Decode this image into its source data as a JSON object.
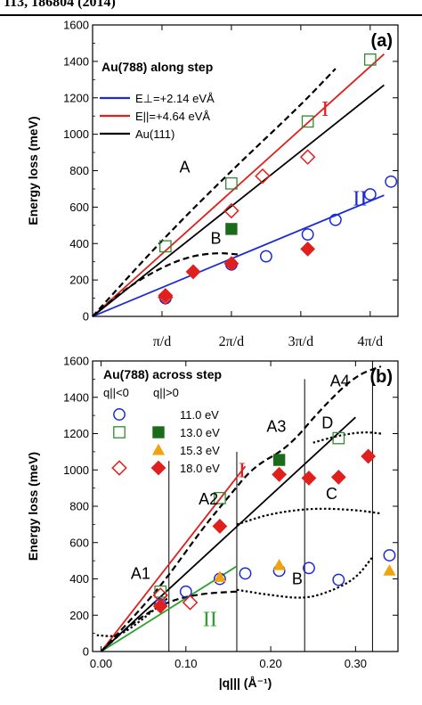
{
  "header": {
    "text": "113, 186804 (2014)"
  },
  "chart_data": [
    {
      "type": "scatter",
      "panel_label": "(a)",
      "title": "Au(788)  along step",
      "ylabel": "Energy loss (meV)",
      "ylim": [
        0,
        1600
      ],
      "yticks": [
        "0",
        "200",
        "400",
        "600",
        "800",
        "1000",
        "1200",
        "1400",
        "1600"
      ],
      "xlim": [
        0,
        4.4
      ],
      "xticks": [
        {
          "value": 1,
          "label": "π/d"
        },
        {
          "value": 2,
          "label": "2π/d"
        },
        {
          "value": 3,
          "label": "3π/d"
        },
        {
          "value": 4,
          "label": "4π/d"
        }
      ],
      "legend": {
        "placement": "top-left",
        "entries": [
          {
            "label": "E⊥=+2.14 eVÅ",
            "color": "#1a2bd6"
          },
          {
            "label": "E||=+4.64 eVÅ",
            "color": "#e0201c"
          },
          {
            "label": "Au(111)",
            "color": "#000000"
          }
        ]
      },
      "lines": [
        {
          "name": "blue-fit",
          "color": "#1a2bd6",
          "style": "solid",
          "x": [
            0,
            4.2
          ],
          "y": [
            0,
            665
          ]
        },
        {
          "name": "red-fit",
          "color": "#e0201c",
          "style": "solid",
          "x": [
            0,
            4.2
          ],
          "y": [
            0,
            1440
          ]
        },
        {
          "name": "black-au111",
          "color": "#000000",
          "style": "solid",
          "x": [
            0,
            4.2
          ],
          "y": [
            0,
            1270
          ]
        },
        {
          "name": "dashed-A",
          "color": "#000000",
          "style": "dashed",
          "x": [
            0,
            1,
            2,
            3,
            3.5
          ],
          "y": [
            0,
            420,
            800,
            1160,
            1360
          ]
        },
        {
          "name": "dashed-B",
          "color": "#000000",
          "style": "dashed",
          "x": [
            0,
            0.5,
            1,
            1.4,
            1.8,
            2.1
          ],
          "y": [
            0,
            160,
            270,
            330,
            350,
            340
          ]
        }
      ],
      "series": [
        {
          "name": "blue-circles",
          "marker": "open-circle",
          "color": "#1a2bd6",
          "x": [
            1.05,
            2.0,
            2.5,
            3.1,
            3.5,
            4.0,
            4.3
          ],
          "y": [
            100,
            285,
            330,
            450,
            530,
            670,
            740
          ]
        },
        {
          "name": "green-open-squares",
          "marker": "open-square",
          "color": "#2f8a2f",
          "x": [
            1.05,
            2.0,
            3.1,
            4.0
          ],
          "y": [
            385,
            730,
            1070,
            1410
          ]
        },
        {
          "name": "green-filled-squares",
          "marker": "filled-square",
          "color": "#1b6b1b",
          "x": [
            2.0
          ],
          "y": [
            480
          ]
        },
        {
          "name": "red-open-diamonds",
          "marker": "open-diamond",
          "color": "#e0201c",
          "x": [
            1.05,
            2.0,
            2.45,
            3.1
          ],
          "y": [
            105,
            580,
            770,
            875
          ]
        },
        {
          "name": "red-filled-diamonds",
          "marker": "filled-diamond",
          "color": "#e0201c",
          "x": [
            1.05,
            1.45,
            2.0,
            3.1
          ],
          "y": [
            115,
            245,
            290,
            370
          ]
        }
      ],
      "annotations": [
        {
          "text": "A",
          "x": 1.25,
          "y": 790,
          "color": "#000000",
          "font": "sans"
        },
        {
          "text": "B",
          "x": 1.7,
          "y": 400,
          "color": "#000000",
          "font": "sans"
        },
        {
          "text": "I",
          "x": 3.3,
          "y": 1100,
          "color": "#e0201c",
          "font": "serif"
        },
        {
          "text": "II",
          "x": 3.75,
          "y": 610,
          "color": "#1a2bd6",
          "font": "serif"
        }
      ]
    },
    {
      "type": "scatter",
      "panel_label": "(b)",
      "title": "Au(788) across step",
      "ylabel": "Energy loss (meV)",
      "xlabel": "|q||| (Å⁻¹)",
      "ylim": [
        0,
        1600
      ],
      "yticks": [
        "0",
        "200",
        "400",
        "600",
        "800",
        "1000",
        "1200",
        "1400",
        "1600"
      ],
      "xlim": [
        -0.01,
        0.35
      ],
      "xticks": [
        {
          "value": 0.0,
          "label": "0.00"
        },
        {
          "value": 0.1,
          "label": "0.10"
        },
        {
          "value": 0.2,
          "label": "0.20"
        },
        {
          "value": 0.3,
          "label": "0.30"
        }
      ],
      "legend": {
        "placement": "top-left",
        "header": [
          "q||<0",
          "q||>0"
        ],
        "entries": [
          {
            "label": "11.0 eV",
            "color": "#1a2bd6"
          },
          {
            "label": "13.0 eV",
            "color": "#2f8a2f"
          },
          {
            "label": "15.3 eV",
            "color": "#f2a20a"
          },
          {
            "label": "18.0 eV",
            "color": "#e0201c"
          }
        ]
      },
      "vlines": [
        0.08,
        0.16,
        0.24,
        0.32
      ],
      "lines": [
        {
          "name": "red-fit",
          "color": "#e0201c",
          "style": "solid",
          "x": [
            0,
            0.17
          ],
          "y": [
            0,
            1020
          ]
        },
        {
          "name": "green-fit",
          "color": "#2ca02c",
          "style": "solid",
          "x": [
            0,
            0.16
          ],
          "y": [
            0,
            470
          ]
        },
        {
          "name": "black-au111",
          "color": "#000000",
          "style": "solid",
          "x": [
            0,
            0.3
          ],
          "y": [
            0,
            1290
          ]
        },
        {
          "name": "dashed-upper",
          "color": "#000000",
          "style": "dashed",
          "x": [
            0,
            0.05,
            0.08,
            0.12,
            0.15,
            0.18,
            0.22,
            0.26,
            0.3,
            0.33
          ],
          "y": [
            0,
            250,
            420,
            680,
            850,
            1020,
            1120,
            1340,
            1520,
            1570
          ]
        },
        {
          "name": "dashed-lower",
          "color": "#000000",
          "style": "dashed",
          "x": [
            0,
            0.04,
            0.08,
            0.12,
            0.16
          ],
          "y": [
            0,
            170,
            280,
            320,
            330
          ]
        },
        {
          "name": "dotted-C",
          "color": "#000000",
          "style": "dotted",
          "x": [
            0.16,
            0.2,
            0.25,
            0.3,
            0.33
          ],
          "y": [
            700,
            760,
            790,
            780,
            760
          ]
        },
        {
          "name": "dotted-D",
          "color": "#000000",
          "style": "dotted",
          "x": [
            0.25,
            0.28,
            0.31,
            0.33
          ],
          "y": [
            1150,
            1190,
            1210,
            1200
          ]
        },
        {
          "name": "dotted-B",
          "color": "#000000",
          "style": "dotted",
          "x": [
            0.16,
            0.2,
            0.24,
            0.27,
            0.3,
            0.32
          ],
          "y": [
            340,
            310,
            290,
            330,
            400,
            520
          ]
        },
        {
          "name": "dotted-A1",
          "color": "#000000",
          "style": "dotted",
          "x": [
            -0.005,
            0.02,
            0.05,
            0.08
          ],
          "y": [
            90,
            80,
            180,
            300
          ]
        }
      ],
      "series": [
        {
          "name": "blue-circles",
          "marker": "open-circle",
          "color": "#1a2bd6",
          "x": [
            0.07,
            0.1,
            0.14,
            0.17,
            0.21,
            0.245,
            0.28,
            0.34
          ],
          "y": [
            260,
            330,
            400,
            430,
            445,
            460,
            395,
            530
          ]
        },
        {
          "name": "green-open-squares",
          "marker": "open-square",
          "color": "#2f8a2f",
          "x": [
            0.07,
            0.14,
            0.28
          ],
          "y": [
            330,
            845,
            1175
          ]
        },
        {
          "name": "green-filled-squares",
          "marker": "filled-square",
          "color": "#1b6b1b",
          "x": [
            0.21
          ],
          "y": [
            1055
          ]
        },
        {
          "name": "orange-triangles",
          "marker": "filled-triangle",
          "color": "#f2a20a",
          "x": [
            0.14,
            0.21,
            0.34
          ],
          "y": [
            410,
            475,
            445
          ]
        },
        {
          "name": "red-open-diamonds",
          "marker": "open-diamond",
          "color": "#e0201c",
          "x": [
            0.07,
            0.105
          ],
          "y": [
            310,
            270
          ]
        },
        {
          "name": "red-filled-diamonds",
          "marker": "filled-diamond",
          "color": "#e0201c",
          "x": [
            0.07,
            0.14,
            0.21,
            0.245,
            0.28,
            0.315
          ],
          "y": [
            250,
            690,
            975,
            955,
            960,
            1075
          ]
        }
      ],
      "annotations": [
        {
          "text": "A1",
          "x": 0.035,
          "y": 400,
          "color": "#000000",
          "font": "sans"
        },
        {
          "text": "A2",
          "x": 0.115,
          "y": 810,
          "color": "#000000",
          "font": "sans"
        },
        {
          "text": "A3",
          "x": 0.195,
          "y": 1210,
          "color": "#000000",
          "font": "sans"
        },
        {
          "text": "A4",
          "x": 0.27,
          "y": 1460,
          "color": "#000000",
          "font": "sans"
        },
        {
          "text": "B",
          "x": 0.225,
          "y": 370,
          "color": "#000000",
          "font": "sans"
        },
        {
          "text": "C",
          "x": 0.265,
          "y": 840,
          "color": "#000000",
          "font": "sans"
        },
        {
          "text": "D",
          "x": 0.26,
          "y": 1230,
          "color": "#000000",
          "font": "sans"
        },
        {
          "text": "I",
          "x": 0.162,
          "y": 960,
          "color": "#e0201c",
          "font": "serif"
        },
        {
          "text": "II",
          "x": 0.12,
          "y": 140,
          "color": "#2ca02c",
          "font": "serif"
        }
      ]
    }
  ]
}
